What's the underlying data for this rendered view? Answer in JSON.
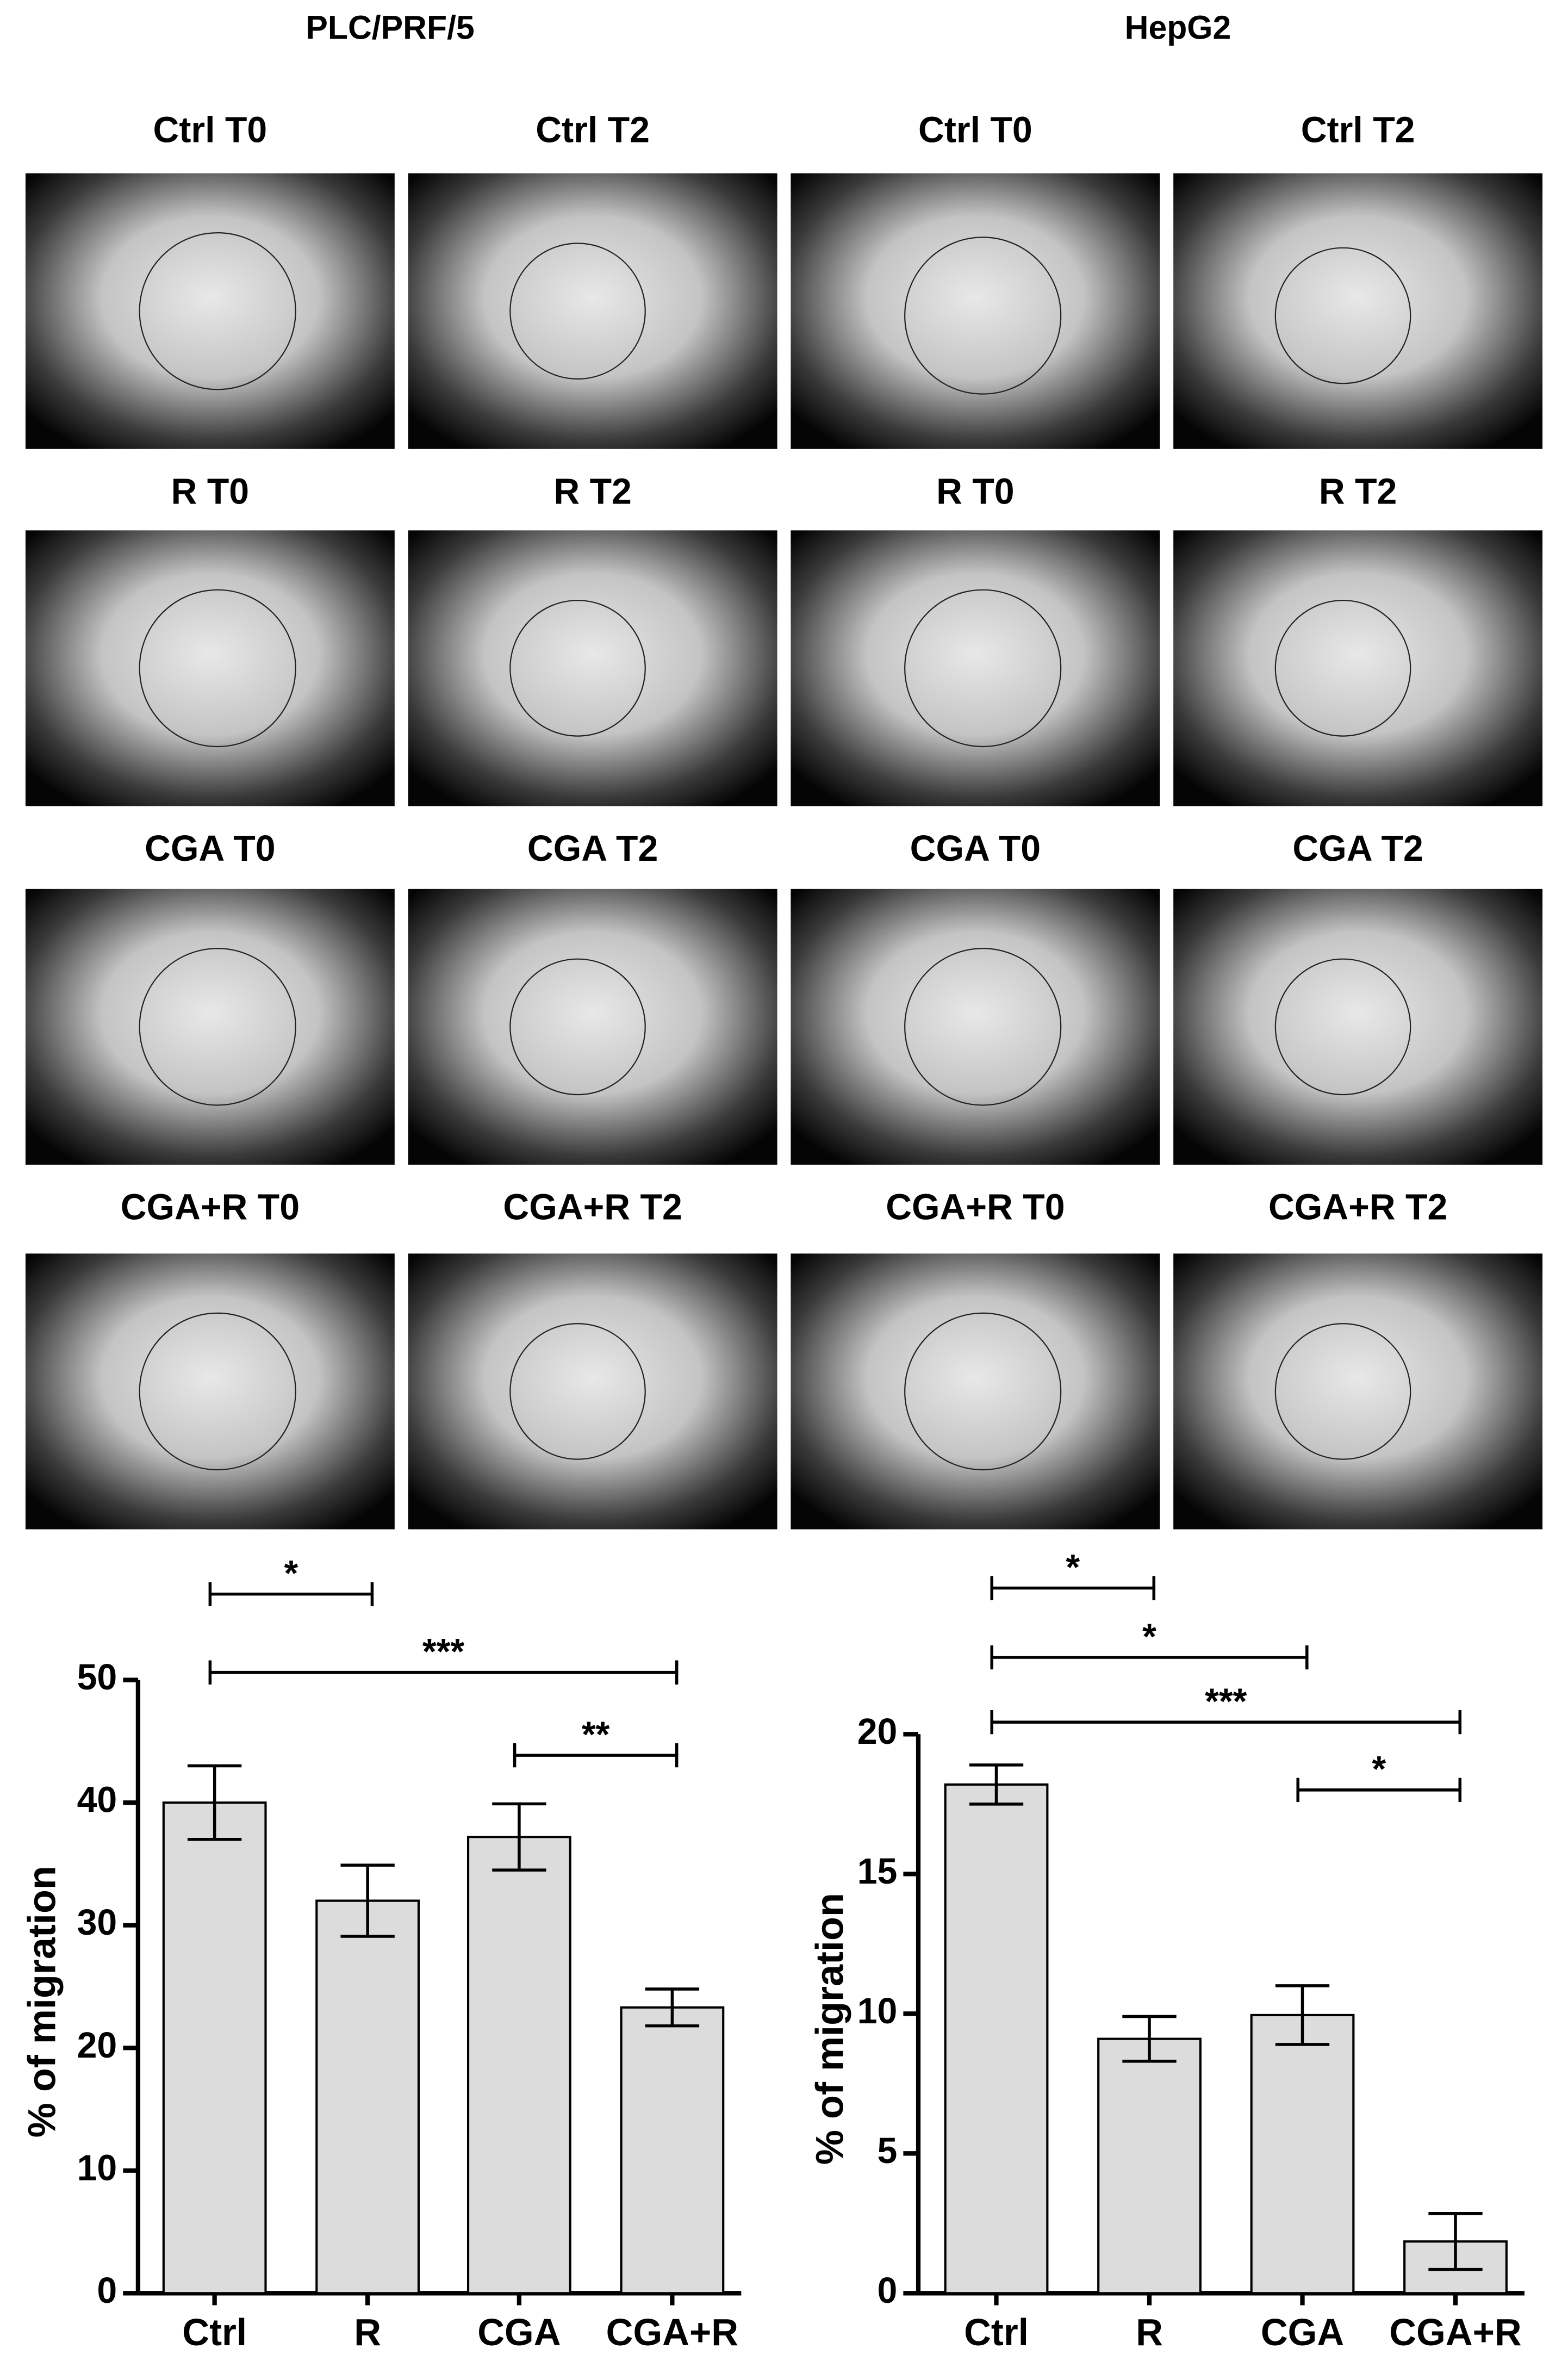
{
  "headers": [
    "PLC/PRF/5",
    "HepG2"
  ],
  "panels": [
    [
      "Ctrl T0",
      "Ctrl T2",
      "Ctrl T0",
      "Ctrl T2"
    ],
    [
      "R T0",
      "R T2",
      "R T0",
      "R T2"
    ],
    [
      "CGA T0",
      "CGA T2",
      "CGA T0",
      "CGA T2"
    ],
    [
      "CGA+R T0",
      "CGA+R T2",
      "CGA+R T0",
      "CGA+R T2"
    ]
  ],
  "chart_data": [
    {
      "type": "bar",
      "y_label": "% of migration",
      "categories": [
        "Ctrl",
        "R",
        "CGA",
        "CGA+R"
      ],
      "values": [
        40,
        32,
        37.2,
        23.3
      ],
      "errors": [
        3,
        2.9,
        2.7,
        1.5
      ],
      "color": "#dcdcdc",
      "ylim": [
        0,
        50
      ],
      "yticks": [
        0,
        10,
        20,
        30,
        40,
        50
      ],
      "annotations": [
        {
          "label": "*",
          "between": [
            "Ctrl",
            "R"
          ]
        },
        {
          "label": "***",
          "between": [
            "Ctrl",
            "CGA+R"
          ]
        },
        {
          "label": "**",
          "between": [
            "CGA",
            "CGA+R"
          ]
        }
      ]
    },
    {
      "type": "bar",
      "y_label": "% of migration",
      "categories": [
        "Ctrl",
        "R",
        "CGA",
        "CGA+R"
      ],
      "values": [
        18.2,
        9.1,
        9.95,
        1.85
      ],
      "errors": [
        0.7,
        0.8,
        1.05,
        1.0
      ],
      "color": "#dcdcdc",
      "ylim": [
        0,
        20
      ],
      "yticks": [
        0,
        5,
        10,
        15,
        20
      ],
      "annotations": [
        {
          "label": "*",
          "between": [
            "Ctrl",
            "R"
          ]
        },
        {
          "label": "*",
          "between": [
            "Ctrl",
            "CGA"
          ]
        },
        {
          "label": "***",
          "between": [
            "Ctrl",
            "CGA+R"
          ]
        },
        {
          "label": "*",
          "between": [
            "CGA",
            "CGA+R"
          ]
        }
      ]
    }
  ]
}
